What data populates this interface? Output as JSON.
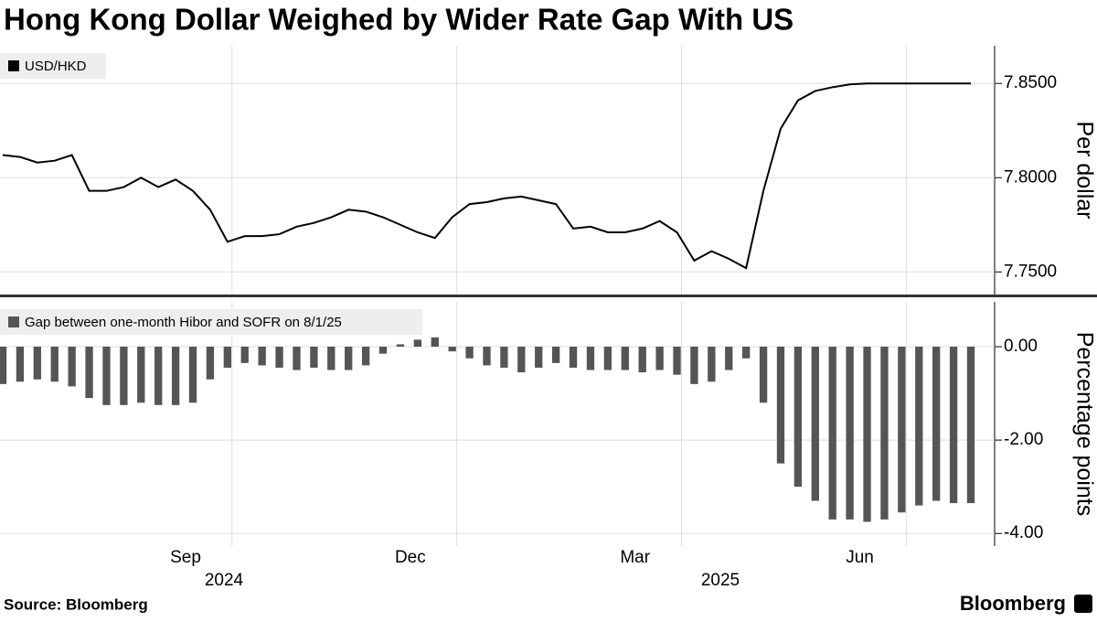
{
  "title": "Hong Kong Dollar Weighed by Wider Rate Gap With US",
  "source": "Source: Bloomberg",
  "brand": "Bloomberg",
  "chart_data": [
    {
      "type": "line",
      "series": [
        {
          "name": "USD/HKD",
          "color": "#000000",
          "values": [
            7.812,
            7.811,
            7.808,
            7.809,
            7.812,
            7.793,
            7.793,
            7.795,
            7.8,
            7.795,
            7.799,
            7.793,
            7.783,
            7.766,
            7.769,
            7.769,
            7.77,
            7.774,
            7.776,
            7.779,
            7.783,
            7.782,
            7.779,
            7.775,
            7.771,
            7.768,
            7.779,
            7.786,
            7.787,
            7.789,
            7.79,
            7.788,
            7.786,
            7.773,
            7.774,
            7.771,
            7.771,
            7.773,
            7.777,
            7.771,
            7.756,
            7.761,
            7.757,
            7.752,
            7.793,
            7.826,
            7.841,
            7.846,
            7.848,
            7.8495,
            7.85,
            7.85,
            7.85,
            7.85,
            7.85,
            7.85,
            7.85
          ]
        }
      ],
      "ylabel": "Per dollar",
      "ylim": [
        7.738,
        7.87
      ],
      "yticks": [
        {
          "value": 7.75,
          "label": "7.7500"
        },
        {
          "value": 7.8,
          "label": "7.8000"
        },
        {
          "value": 7.85,
          "label": "7.8500"
        }
      ]
    },
    {
      "type": "bar",
      "categories": [
        null,
        null,
        null,
        null,
        null,
        null,
        null,
        null,
        null,
        null,
        null,
        "Sep",
        null,
        null,
        null,
        null,
        null,
        null,
        null,
        null,
        null,
        null,
        null,
        null,
        "Dec",
        null,
        null,
        null,
        null,
        null,
        null,
        null,
        null,
        null,
        null,
        null,
        null,
        "Mar",
        null,
        null,
        null,
        null,
        null,
        null,
        null,
        null,
        null,
        null,
        null,
        null,
        "Jun",
        null,
        null,
        null,
        null,
        null,
        null
      ],
      "years": [
        "2024",
        "2025"
      ],
      "series": [
        {
          "name": "Gap between one-month Hibor and SOFR on 8/1/25",
          "color": "#555555",
          "values": [
            -0.8,
            -0.75,
            -0.7,
            -0.75,
            -0.85,
            -1.1,
            -1.25,
            -1.25,
            -1.2,
            -1.25,
            -1.25,
            -1.2,
            -0.7,
            -0.45,
            -0.35,
            -0.4,
            -0.45,
            -0.5,
            -0.45,
            -0.5,
            -0.5,
            -0.4,
            -0.15,
            0.05,
            0.15,
            0.2,
            -0.1,
            -0.25,
            -0.4,
            -0.45,
            -0.55,
            -0.45,
            -0.35,
            -0.45,
            -0.5,
            -0.5,
            -0.5,
            -0.55,
            -0.5,
            -0.6,
            -0.8,
            -0.75,
            -0.5,
            -0.25,
            -1.2,
            -2.5,
            -3.0,
            -3.3,
            -3.7,
            -3.7,
            -3.75,
            -3.7,
            -3.55,
            -3.4,
            -3.3,
            -3.35,
            -3.35
          ]
        }
      ],
      "ylabel": "Percentage points",
      "ylim": [
        -4.27,
        0.96
      ],
      "yticks": [
        {
          "value": 0,
          "label": "0.00"
        },
        {
          "value": -2,
          "label": "-2.00"
        },
        {
          "value": -4,
          "label": "-4.00"
        }
      ]
    }
  ]
}
